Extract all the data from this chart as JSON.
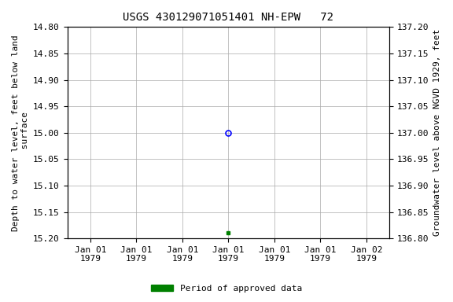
{
  "title": "USGS 430129071051401 NH-EPW   72",
  "ylabel_left": "Depth to water level, feet below land\n surface",
  "ylabel_right": "Groundwater level above NGVD 1929, feet",
  "ylim_left": [
    15.2,
    14.8
  ],
  "ylim_right": [
    136.8,
    137.2
  ],
  "yticks_left": [
    14.8,
    14.85,
    14.9,
    14.95,
    15.0,
    15.05,
    15.1,
    15.15,
    15.2
  ],
  "yticks_right": [
    137.2,
    137.15,
    137.1,
    137.05,
    137.0,
    136.95,
    136.9,
    136.85,
    136.8
  ],
  "xtick_labels": [
    "Jan 01\n1979",
    "Jan 01\n1979",
    "Jan 01\n1979",
    "Jan 01\n1979",
    "Jan 01\n1979",
    "Jan 01\n1979",
    "Jan 02\n1979"
  ],
  "n_xticks": 7,
  "data_point_open": {
    "x": 3,
    "value": 15.0
  },
  "data_point_filled": {
    "x": 3,
    "value": 15.19
  },
  "open_marker_color": "#0000ff",
  "filled_marker_color": "#008000",
  "legend_label": "Period of approved data",
  "legend_color": "#008000",
  "background_color": "#ffffff",
  "grid_color": "#aaaaaa",
  "title_fontsize": 10,
  "axis_label_fontsize": 8,
  "tick_fontsize": 8,
  "font_family": "monospace",
  "figsize": [
    5.76,
    3.84
  ],
  "dpi": 100
}
